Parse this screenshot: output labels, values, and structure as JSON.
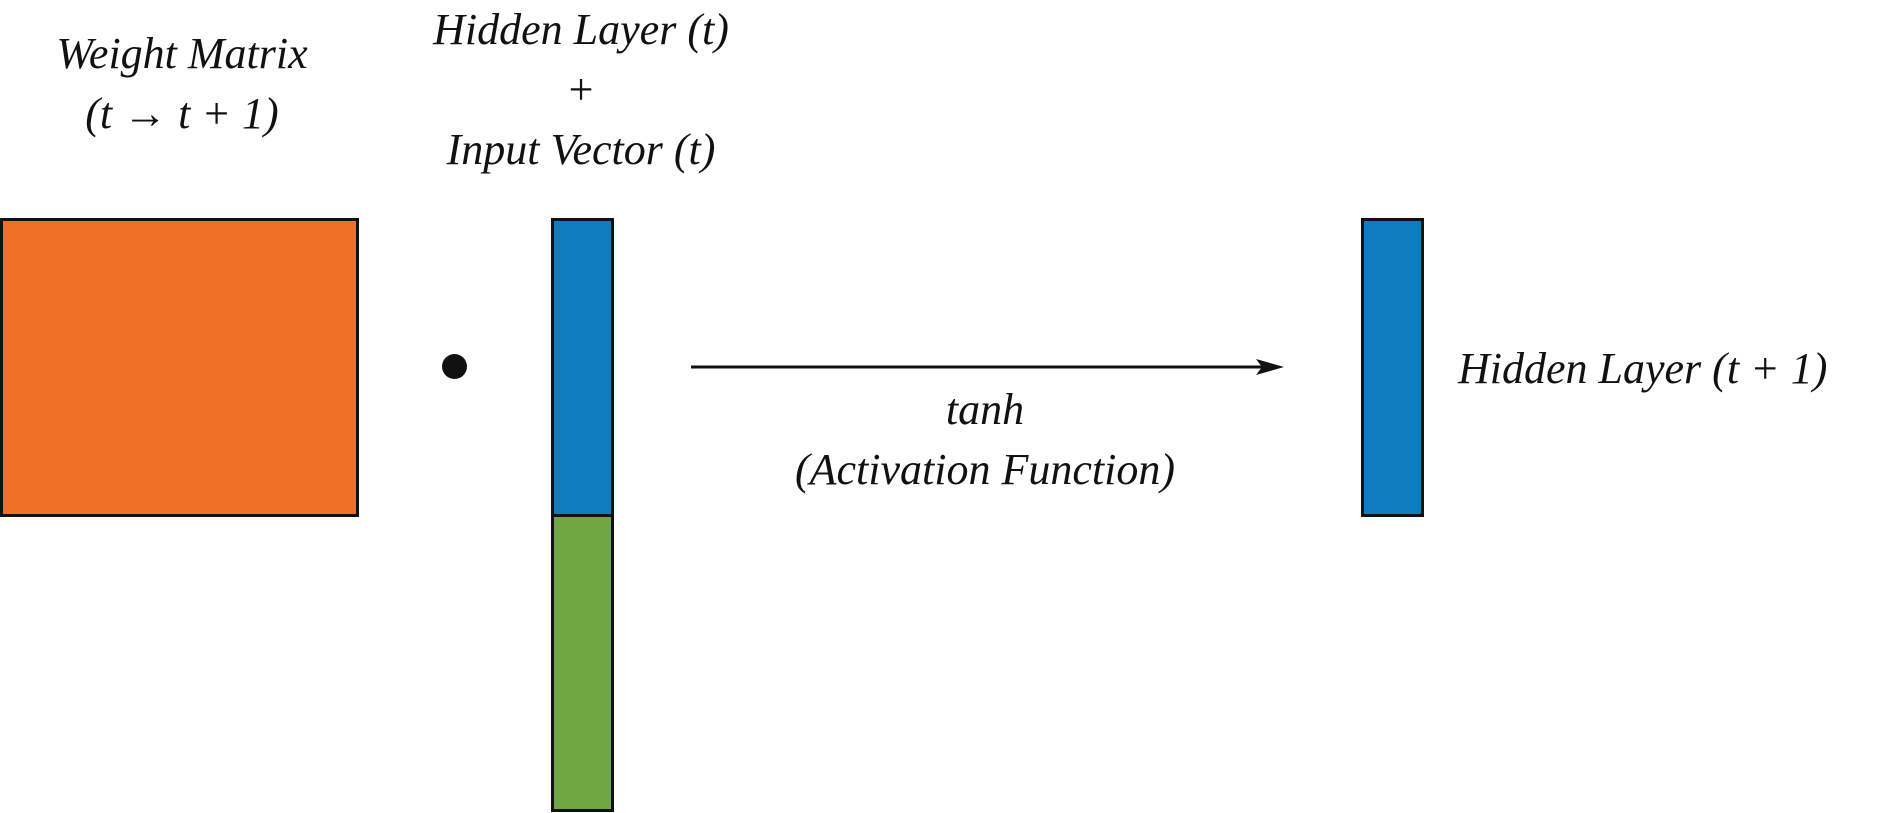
{
  "weight_matrix": {
    "label_line1": "Weight Matrix",
    "label_line2": "(t → t + 1)",
    "color": "#f07026"
  },
  "concat_vector": {
    "label_line1": "Hidden Layer (t)",
    "label_plus": "+",
    "label_line3": "Input Vector (t)",
    "hidden_color": "#107cc0",
    "input_color": "#70a745"
  },
  "operator": {
    "name": "dot-product"
  },
  "activation": {
    "label_line1": "tanh",
    "label_line2": "(Activation Function)"
  },
  "output": {
    "label": "Hidden Layer (t + 1)",
    "color": "#107cc0"
  }
}
